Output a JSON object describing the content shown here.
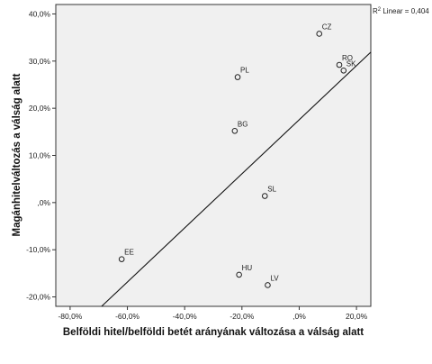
{
  "chart_data": {
    "type": "scatter",
    "xlabel": "Belföldi hitel/belföldi betét arányának változása a válság alatt",
    "ylabel": "Magánhitelváltozás a válság alatt",
    "xlim": [
      -85,
      25
    ],
    "ylim": [
      -22,
      42
    ],
    "x_ticks": [
      -80,
      -60,
      -40,
      -20,
      0,
      20
    ],
    "x_tick_labels": [
      "-80,0%",
      "-60,0%",
      "-40,0%",
      "-20,0%",
      ",0%",
      "20,0%"
    ],
    "y_ticks": [
      -20,
      -10,
      0,
      10,
      20,
      30,
      40
    ],
    "y_tick_labels": [
      "-20,0%",
      "-10,0%",
      ",0%",
      "10,0%",
      "20,0%",
      "30,0%",
      "40,0%"
    ],
    "points": [
      {
        "label": "CZ",
        "x": 7,
        "y": 35.8
      },
      {
        "label": "RO",
        "x": 14,
        "y": 29.2
      },
      {
        "label": "SK",
        "x": 15.5,
        "y": 28
      },
      {
        "label": "PL",
        "x": -21.5,
        "y": 26.6
      },
      {
        "label": "BG",
        "x": -22.5,
        "y": 15.2
      },
      {
        "label": "SL",
        "x": -12,
        "y": 1.4
      },
      {
        "label": "EE",
        "x": -62,
        "y": -12
      },
      {
        "label": "HU",
        "x": -21,
        "y": -15.3
      },
      {
        "label": "LV",
        "x": -11,
        "y": -17.5
      }
    ],
    "fit_line": {
      "label_prefix": "R",
      "label_sup": "2",
      "label_suffix": " Linear = 0,404",
      "x": [
        -69,
        25
      ],
      "y": [
        -22,
        31.9
      ]
    },
    "grid": false,
    "plot_background": "#f0f0f0",
    "marker_color": "#222222"
  }
}
